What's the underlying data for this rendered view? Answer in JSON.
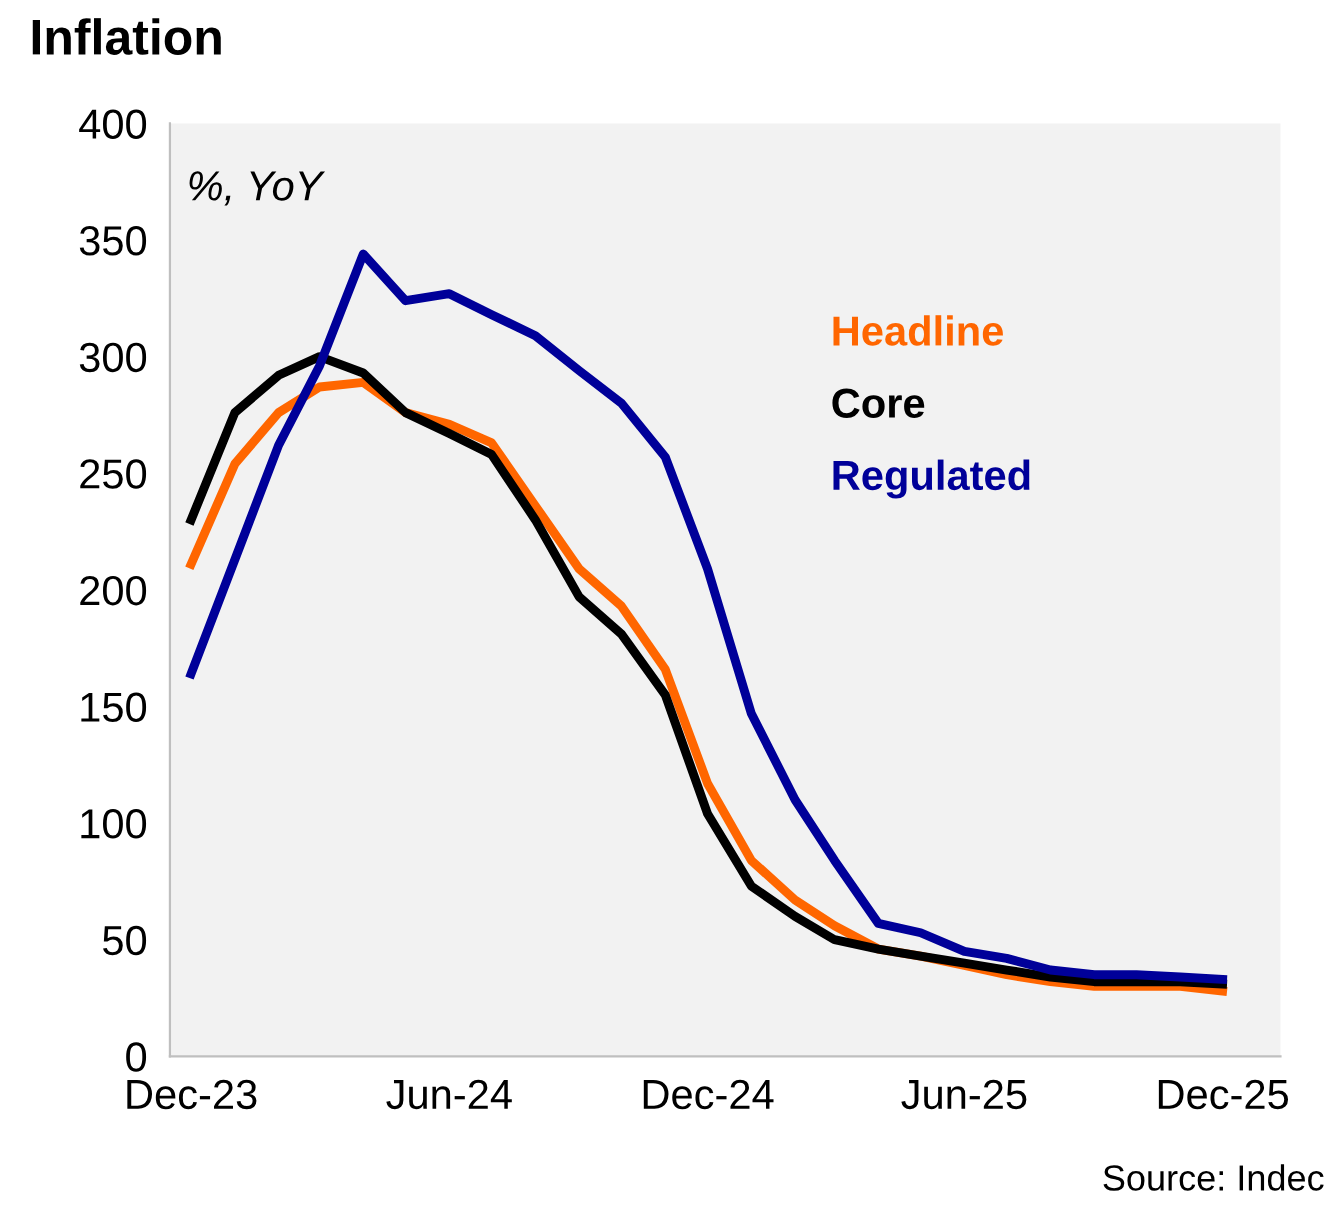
{
  "chart_data": {
    "type": "line",
    "title": "Inflation",
    "annotations": [
      "%, YoY",
      "Source: Indec"
    ],
    "x": [
      "2023-12",
      "2024-01",
      "2024-02",
      "2024-03",
      "2024-04",
      "2024-05",
      "2024-06",
      "2024-07",
      "2024-08",
      "2024-09",
      "2024-10",
      "2024-11",
      "2024-12",
      "2025-01",
      "2025-02",
      "2025-03",
      "2025-04",
      "2025-05",
      "2025-06",
      "2025-07",
      "2025-08",
      "2025-09",
      "2025-10",
      "2025-11",
      "2025-12"
    ],
    "series": [
      {
        "name": "Headline",
        "color": "#ff6600",
        "values": [
          211,
          254,
          276,
          287,
          289,
          276,
          271,
          263,
          236,
          209,
          193,
          166,
          117,
          84,
          67,
          56,
          46,
          43,
          39,
          35,
          32,
          30,
          30,
          30,
          28
        ]
      },
      {
        "name": "Core",
        "color": "#000000",
        "values": [
          230,
          276,
          292,
          300,
          293,
          276,
          267,
          258,
          230,
          197,
          181,
          155,
          104,
          73,
          60,
          50,
          46,
          43,
          40,
          37,
          34,
          32,
          32,
          32,
          31
        ]
      },
      {
        "name": "Regulated",
        "color": "#000099",
        "values": [
          164,
          213,
          262,
          296,
          344,
          324,
          327,
          318,
          309,
          294,
          280,
          257,
          209,
          147,
          110,
          84,
          57,
          53,
          45,
          42,
          37,
          35,
          35,
          34,
          33
        ]
      }
    ],
    "xlim": [
      "2023-11-16",
      "2026-01-11"
    ],
    "xticks": [
      {
        "value": "2023-12",
        "label": "Dec-23"
      },
      {
        "value": "2024-06",
        "label": "Jun-24"
      },
      {
        "value": "2024-12",
        "label": "Dec-24"
      },
      {
        "value": "2025-06",
        "label": "Jun-25"
      },
      {
        "value": "2025-12",
        "label": "Dec-25"
      }
    ],
    "ylim": [
      0,
      400
    ],
    "yticks": [
      0,
      50,
      100,
      150,
      200,
      250,
      300,
      350,
      400
    ],
    "grid": false,
    "legend": "top right",
    "marker": "none",
    "line_style": "solid"
  }
}
